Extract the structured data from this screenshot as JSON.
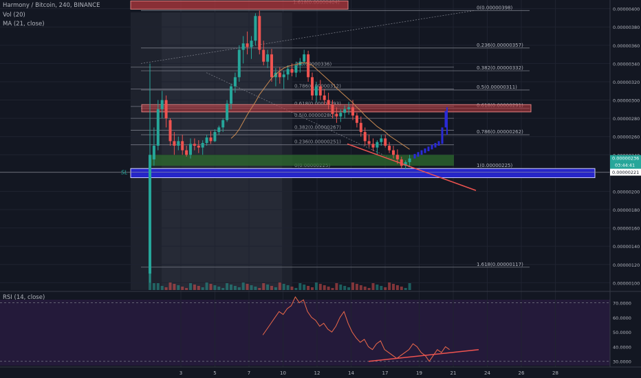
{
  "header": {
    "symbol_line": "Harmony / Bitcoin, 240, BINANCE",
    "vol_line": "Vol (20)",
    "ma_line": "MA (21, close)",
    "rsi_line": "RSI (14, close)"
  },
  "colors": {
    "background": "#131722",
    "up_candle": "#26a69a",
    "down_candle": "#ef5350",
    "ma_line": "#c98a52",
    "fib_line": "#787b86",
    "resistance_zone": "#b2383e",
    "support_zone": "#2e6b2e",
    "sl_zone": "#2626c8",
    "projection": "#2a2ad6",
    "trend_line": "#ef5350",
    "rsi_line": "#ef6a4a",
    "rsi_panel": "#241a3a"
  },
  "chart_data": [
    {
      "type": "candlestick",
      "symbol": "Harmony / Bitcoin",
      "interval": "240",
      "exchange": "BINANCE",
      "y_unit": "BTC",
      "ylim": [
        9.5e-07,
        4.02e-06
      ],
      "yticks": [
        "0.00000400",
        "0.00000380",
        "0.00000360",
        "0.00000340",
        "0.00000320",
        "0.00000300",
        "0.00000280",
        "0.00000260",
        "0.00000240",
        "0.00000220",
        "0.00000200",
        "0.00000180",
        "0.00000160",
        "0.00000140",
        "0.00000120",
        "0.00000100"
      ],
      "x_ticks": [
        {
          "label": "3",
          "t": 4
        },
        {
          "label": "5",
          "t": 16
        },
        {
          "label": "7",
          "t": 28
        },
        {
          "label": "10",
          "t": 40
        },
        {
          "label": "12",
          "t": 52
        },
        {
          "label": "14",
          "t": 64
        },
        {
          "label": "17",
          "t": 76
        },
        {
          "label": "19",
          "t": 88
        },
        {
          "label": "21",
          "t": 100
        },
        {
          "label": "24",
          "t": 112
        },
        {
          "label": "26",
          "t": 124
        },
        {
          "label": "28",
          "t": 136
        }
      ],
      "candles": [
        [
          110,
          340,
          100,
          240
        ],
        [
          235,
          270,
          228,
          250
        ],
        [
          250,
          300,
          245,
          290
        ],
        [
          290,
          310,
          280,
          300
        ],
        [
          300,
          305,
          270,
          280
        ],
        [
          278,
          280,
          250,
          255
        ],
        [
          255,
          265,
          240,
          250
        ],
        [
          250,
          260,
          245,
          255
        ],
        [
          255,
          262,
          240,
          245
        ],
        [
          245,
          250,
          238,
          240
        ],
        [
          240,
          258,
          236,
          252
        ],
        [
          252,
          258,
          245,
          250
        ],
        [
          250,
          256,
          242,
          248
        ],
        [
          248,
          256,
          240,
          253
        ],
        [
          253,
          262,
          250,
          259
        ],
        [
          259,
          266,
          252,
          255
        ],
        [
          255,
          268,
          254,
          265
        ],
        [
          265,
          272,
          262,
          270
        ],
        [
          270,
          280,
          265,
          278
        ],
        [
          278,
          300,
          276,
          296
        ],
        [
          296,
          318,
          290,
          315
        ],
        [
          315,
          330,
          308,
          325
        ],
        [
          325,
          360,
          320,
          355
        ],
        [
          355,
          370,
          340,
          362
        ],
        [
          362,
          375,
          350,
          358
        ],
        [
          358,
          370,
          345,
          365
        ],
        [
          365,
          395,
          360,
          392
        ],
        [
          392,
          398,
          350,
          355
        ],
        [
          355,
          365,
          338,
          342
        ],
        [
          342,
          355,
          335,
          350
        ],
        [
          350,
          356,
          320,
          325
        ],
        [
          325,
          335,
          315,
          330
        ],
        [
          330,
          336,
          318,
          325
        ],
        [
          325,
          332,
          312,
          328
        ],
        [
          328,
          338,
          322,
          334
        ],
        [
          334,
          340,
          326,
          330
        ],
        [
          330,
          342,
          325,
          338
        ],
        [
          338,
          346,
          330,
          342
        ],
        [
          342,
          355,
          338,
          350
        ],
        [
          350,
          354,
          320,
          325
        ],
        [
          325,
          330,
          300,
          305
        ],
        [
          305,
          320,
          298,
          315
        ],
        [
          315,
          322,
          300,
          305
        ],
        [
          305,
          312,
          295,
          300
        ],
        [
          300,
          308,
          290,
          295
        ],
        [
          295,
          300,
          280,
          285
        ],
        [
          285,
          292,
          275,
          282
        ],
        [
          282,
          290,
          276,
          286
        ],
        [
          286,
          294,
          280,
          290
        ],
        [
          290,
          298,
          284,
          292
        ],
        [
          292,
          300,
          278,
          283
        ],
        [
          283,
          286,
          270,
          275
        ],
        [
          275,
          282,
          260,
          265
        ],
        [
          265,
          270,
          250,
          255
        ],
        [
          255,
          262,
          248,
          252
        ],
        [
          252,
          258,
          244,
          248
        ],
        [
          248,
          256,
          240,
          254
        ],
        [
          254,
          262,
          250,
          258
        ],
        [
          258,
          262,
          248,
          250
        ],
        [
          250,
          254,
          242,
          245
        ],
        [
          245,
          250,
          236,
          240
        ],
        [
          240,
          246,
          230,
          235
        ],
        [
          235,
          238,
          225,
          228
        ],
        [
          228,
          234,
          224,
          232
        ],
        [
          232,
          240,
          228,
          236
        ]
      ],
      "ma21": [
        null,
        null,
        null,
        null,
        null,
        null,
        null,
        null,
        null,
        null,
        null,
        null,
        null,
        null,
        null,
        null,
        null,
        null,
        null,
        null,
        258,
        262,
        268,
        276,
        284,
        291,
        298,
        306,
        312,
        318,
        324,
        328,
        332,
        335,
        337,
        338,
        339,
        340,
        341,
        340,
        338,
        334,
        330,
        326,
        322,
        318,
        313,
        309,
        305,
        301,
        297,
        292,
        288,
        283,
        279,
        275,
        271,
        268,
        265,
        261,
        258,
        255,
        252,
        249,
        246
      ],
      "fibonacci_a": [
        {
          "label": "1.618(0.00000404)",
          "value": 4.04e-06
        },
        {
          "label": "1(0.00000336)",
          "value": 3.36e-06
        },
        {
          "label": "0.786(0.00000312)",
          "value": 3.12e-06
        },
        {
          "label": "0.618(0.00000293)",
          "value": 2.93e-06
        },
        {
          "label": "0.5(0.00000280)",
          "value": 2.8e-06
        },
        {
          "label": "0.382(0.00000267)",
          "value": 2.67e-06
        },
        {
          "label": "0.236(0.00000251)",
          "value": 2.51e-06
        },
        {
          "label": "0(0.00000225)",
          "value": 2.25e-06
        }
      ],
      "fibonacci_b": [
        {
          "label": "0(0.00000398)",
          "value": 3.98e-06
        },
        {
          "label": "0.236(0.00000357)",
          "value": 3.57e-06
        },
        {
          "label": "0.382(0.00000332)",
          "value": 3.32e-06
        },
        {
          "label": "0.5(0.00000311)",
          "value": 3.11e-06
        },
        {
          "label": "0.618(0.00000291)",
          "value": 2.91e-06
        },
        {
          "label": "0.786(0.00000262)",
          "value": 2.62e-06
        },
        {
          "label": "1(0.00000225)",
          "value": 2.25e-06
        },
        {
          "label": "1.618(0.00000117)",
          "value": 1.17e-06
        }
      ],
      "price_labels": [
        {
          "label": "0.00000236",
          "sub": "03:44:41",
          "value": 2.36e-06
        },
        {
          "label": "0.00000221",
          "value": 2.21e-06
        }
      ],
      "sl_label": "SL",
      "zones": [
        {
          "name": "resistance",
          "top": 2.95e-06,
          "bottom": 2.87e-06
        },
        {
          "name": "support",
          "top": 2.4e-06,
          "bottom": 2.28e-06
        },
        {
          "name": "stop-loss",
          "top": 2.25e-06,
          "bottom": 2.15e-06
        }
      ]
    },
    {
      "type": "line",
      "title": "RSI (14, close)",
      "ylim": [
        28,
        74
      ],
      "yticks": [
        "70.0000",
        "60.0000",
        "50.0000",
        "40.0000",
        "30.0000"
      ],
      "bands": [
        70,
        30
      ],
      "values": [
        null,
        null,
        null,
        null,
        null,
        null,
        null,
        null,
        null,
        null,
        null,
        null,
        null,
        null,
        null,
        null,
        null,
        null,
        48,
        52,
        56,
        60,
        64,
        62,
        66,
        68,
        74,
        70,
        72,
        64,
        60,
        58,
        54,
        56,
        52,
        50,
        54,
        60,
        64,
        56,
        50,
        46,
        43,
        45,
        40,
        38,
        42,
        44,
        38,
        36,
        34,
        32,
        34,
        36,
        38,
        42,
        40,
        36,
        34,
        30,
        34,
        38,
        36,
        40,
        38
      ]
    }
  ]
}
